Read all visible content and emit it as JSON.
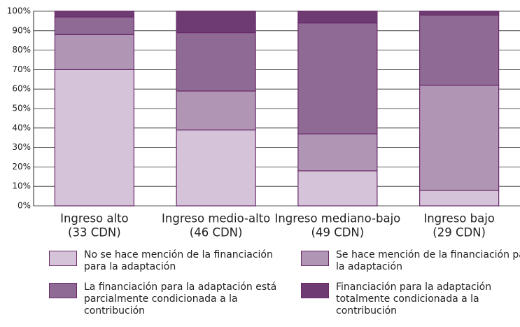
{
  "chart_data": {
    "type": "stacked_bar",
    "categories": [
      [
        "Ingreso alto",
        "(33 CDN)"
      ],
      [
        "Ingreso medio-alto",
        "(46 CDN)"
      ],
      [
        "Ingreso mediano-bajo",
        "(49 CDN)"
      ],
      [
        "Ingreso bajo",
        "(29 CDN)"
      ]
    ],
    "series": [
      {
        "name": "No se hace mención de la financiación para la adaptación",
        "color": "#d5c3d9",
        "values": [
          70,
          39,
          18,
          8
        ]
      },
      {
        "name": "Se hace mención de la financiación para la adaptación",
        "color": "#b096b4",
        "values": [
          18,
          20,
          19,
          54
        ]
      },
      {
        "name": "La financiación para la adaptación está parcialmente condicionada a la contribución",
        "color": "#8e6a94",
        "values": [
          9,
          30,
          57,
          36
        ]
      },
      {
        "name": "Financiación para la adaptación totalmente condicionada a la contribución",
        "color": "#6e3c73",
        "values": [
          3,
          11,
          6,
          2
        ]
      }
    ],
    "ylim": [
      0,
      100
    ],
    "yticks": [
      {
        "value": 0,
        "label": "0%"
      },
      {
        "value": 10,
        "label": "10%"
      },
      {
        "value": 20,
        "label": "20%"
      },
      {
        "value": 30,
        "label": "30%"
      },
      {
        "value": 40,
        "label": "40%"
      },
      {
        "value": 50,
        "label": "50%"
      },
      {
        "value": 60,
        "label": "60%"
      },
      {
        "value": 70,
        "label": "70%"
      },
      {
        "value": 80,
        "label": "80%"
      },
      {
        "value": 90,
        "label": "90%"
      },
      {
        "value": 100,
        "label": "100%"
      }
    ],
    "grid": true
  }
}
